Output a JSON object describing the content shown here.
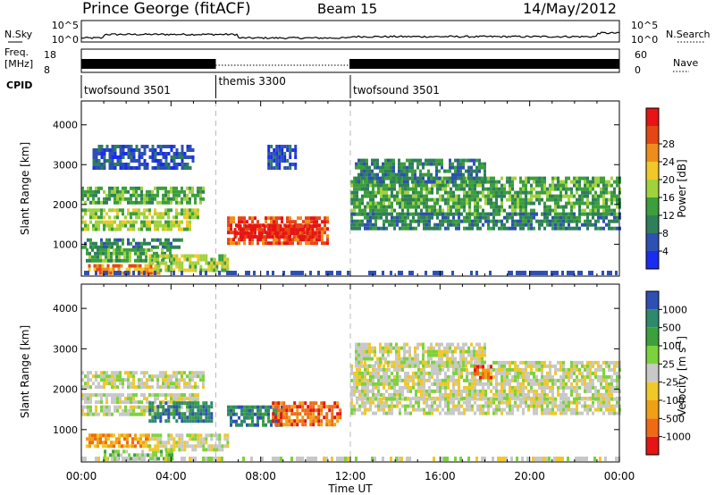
{
  "header": {
    "station": "Prince George (fitACF)",
    "beam": "Beam 15",
    "date": "14/May/2012"
  },
  "strips": {
    "nsky_label": "N.Sky",
    "nsky_ticks": [
      "10^5",
      "10^0"
    ],
    "nsearch_label": "N.Search",
    "nsearch_ticks": [
      "10^5",
      "10^0"
    ],
    "freq_label_1": "Freq.",
    "freq_label_2": "[MHz]",
    "freq_ticks": [
      "18",
      "8"
    ],
    "nave_label": "Nave",
    "nave_ticks": [
      "60",
      "0"
    ],
    "cpid_label": "CPID",
    "cpid_segments": [
      {
        "label": "twofsound 3501",
        "start_hour": 0,
        "end_hour": 6
      },
      {
        "label": "themis 3300",
        "start_hour": 6,
        "end_hour": 12
      },
      {
        "label": "twofsound 3501",
        "start_hour": 12,
        "end_hour": 24
      }
    ]
  },
  "chart_data": [
    {
      "type": "heatmap",
      "name": "power",
      "ylabel": "Slant Range [km]",
      "x_range_hours": [
        0,
        24
      ],
      "ylim": [
        200,
        4600
      ],
      "y_ticks": [
        1000,
        2000,
        3000,
        4000
      ],
      "colorbar_label": "Power [dB]",
      "colorbar_ticks": [
        "4",
        "8",
        "12",
        "16",
        "20",
        "24",
        "28"
      ],
      "colorbar_colors": [
        "#1a2cf0",
        "#2e50b4",
        "#2f7f5a",
        "#3c9e3c",
        "#a0d23c",
        "#f0c828",
        "#f08c1e",
        "#e64614",
        "#e61414"
      ],
      "regions": [
        {
          "x": [
            0.0,
            5.5
          ],
          "y": [
            2050,
            2450
          ],
          "level": 3
        },
        {
          "x": [
            0.0,
            5.2
          ],
          "y": [
            1650,
            1900
          ],
          "level": 4
        },
        {
          "x": [
            0.0,
            5.0
          ],
          "y": [
            1400,
            1600
          ],
          "level": 4
        },
        {
          "x": [
            0.0,
            4.5
          ],
          "y": [
            900,
            1150
          ],
          "level": 2
        },
        {
          "x": [
            0.2,
            4.0
          ],
          "y": [
            600,
            900
          ],
          "level": 3
        },
        {
          "x": [
            0.3,
            3.5
          ],
          "y": [
            250,
            500
          ],
          "level": 6
        },
        {
          "x": [
            3.0,
            6.5
          ],
          "y": [
            350,
            750
          ],
          "level": 4
        },
        {
          "x": [
            6.5,
            11.0
          ],
          "y": [
            1050,
            1700
          ],
          "level": 7
        },
        {
          "x": [
            6.8,
            10.5
          ],
          "y": [
            1200,
            1500
          ],
          "level": 8
        },
        {
          "x": [
            12.0,
            24.0
          ],
          "y": [
            1800,
            2700
          ],
          "level": 3
        },
        {
          "x": [
            12.0,
            24.0
          ],
          "y": [
            1400,
            1800
          ],
          "level": 2
        },
        {
          "x": [
            12.2,
            18.0
          ],
          "y": [
            2550,
            3150
          ],
          "level": 2
        },
        {
          "x": [
            8.3,
            9.5
          ],
          "y": [
            2900,
            3500
          ],
          "level": 1
        },
        {
          "x": [
            0.5,
            5.0
          ],
          "y": [
            2900,
            3500
          ],
          "level": 1
        }
      ]
    },
    {
      "type": "heatmap",
      "name": "velocity",
      "ylabel": "Slant Range [km]",
      "x_range_hours": [
        0,
        24
      ],
      "ylim": [
        200,
        4600
      ],
      "y_ticks": [
        1000,
        2000,
        3000,
        4000
      ],
      "xlabel": "Time UT",
      "x_ticks": [
        "00:00",
        "04:00",
        "08:00",
        "12:00",
        "16:00",
        "20:00",
        "00:00"
      ],
      "colorbar_label": "Velocity [m s",
      "colorbar_label_sup": "-1",
      "colorbar_label_end": "]",
      "colorbar_ticks": [
        "-1000",
        "-500",
        "-100",
        "-25",
        "25",
        "100",
        "500",
        "1000"
      ],
      "colorbar_colors": [
        "#e61414",
        "#f06a14",
        "#f0a014",
        "#f0c828",
        "#c8c8c8",
        "#7cd23c",
        "#3ca03c",
        "#2e8a6a",
        "#2e50b4"
      ],
      "regions": [
        {
          "x": [
            0.0,
            5.5
          ],
          "y": [
            2050,
            2450
          ],
          "level": 4
        },
        {
          "x": [
            0.0,
            5.2
          ],
          "y": [
            1650,
            1900
          ],
          "level": 4
        },
        {
          "x": [
            0.0,
            5.0
          ],
          "y": [
            1400,
            1600
          ],
          "level": 4
        },
        {
          "x": [
            3.0,
            5.8
          ],
          "y": [
            1200,
            1700
          ],
          "level": 7
        },
        {
          "x": [
            0.2,
            3.0
          ],
          "y": [
            600,
            900
          ],
          "level": 2
        },
        {
          "x": [
            1.0,
            4.0
          ],
          "y": [
            250,
            500
          ],
          "level": 5
        },
        {
          "x": [
            3.0,
            6.5
          ],
          "y": [
            500,
            900
          ],
          "level": 4
        },
        {
          "x": [
            6.5,
            9.0
          ],
          "y": [
            1100,
            1600
          ],
          "level": 7
        },
        {
          "x": [
            8.5,
            11.5
          ],
          "y": [
            1100,
            1700
          ],
          "level": 1
        },
        {
          "x": [
            12.0,
            24.0
          ],
          "y": [
            1800,
            2700
          ],
          "level": 4
        },
        {
          "x": [
            12.0,
            24.0
          ],
          "y": [
            1400,
            1800
          ],
          "level": 4
        },
        {
          "x": [
            12.2,
            18.0
          ],
          "y": [
            2550,
            3150
          ],
          "level": 4
        },
        {
          "x": [
            17.5,
            18.3
          ],
          "y": [
            2300,
            2600
          ],
          "level": 1
        }
      ]
    }
  ]
}
